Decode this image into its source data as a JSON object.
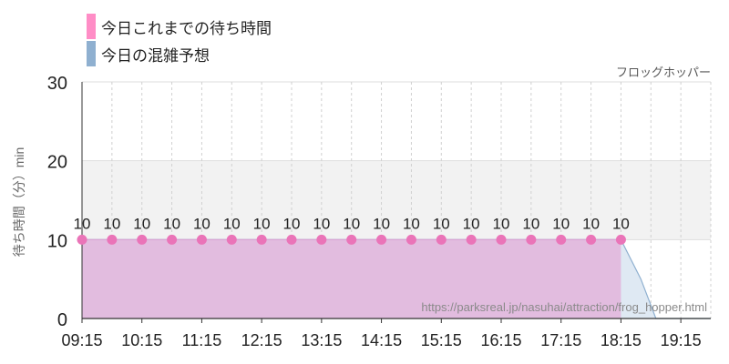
{
  "legend": [
    {
      "label": "今日これまでの待ち時間",
      "color": "#ff8dc6"
    },
    {
      "label": "今日の混雑予想",
      "color": "#8fb0d0"
    }
  ],
  "attraction_name": "フロッグホッパー",
  "source_url": "https://parksreal.jp/nasuhai/attraction/frog_hopper.html",
  "chart_data": {
    "type": "area",
    "ylabel": "待ち時間（分）min",
    "ylim": [
      0,
      30
    ],
    "yticks": [
      0,
      10,
      20,
      30
    ],
    "xticks": [
      "09:15",
      "10:15",
      "11:15",
      "12:15",
      "13:15",
      "14:15",
      "15:15",
      "16:15",
      "17:15",
      "18:15",
      "19:15"
    ],
    "xlim": [
      "09:15",
      "19:45"
    ],
    "shaded_band": [
      10,
      20
    ],
    "series": [
      {
        "name": "今日これまでの待ち時間",
        "type": "area_points",
        "color": "#e86fb0",
        "x": [
          "09:15",
          "09:45",
          "10:15",
          "10:45",
          "11:15",
          "11:45",
          "12:15",
          "12:45",
          "13:15",
          "13:45",
          "14:15",
          "14:45",
          "15:15",
          "15:45",
          "16:15",
          "16:45",
          "17:15",
          "17:45",
          "18:15"
        ],
        "values": [
          10,
          10,
          10,
          10,
          10,
          10,
          10,
          10,
          10,
          10,
          10,
          10,
          10,
          10,
          10,
          10,
          10,
          10,
          10
        ]
      },
      {
        "name": "今日の混雑予想",
        "type": "area",
        "color": "#8fb0d0",
        "x": [
          "09:15",
          "18:00",
          "18:15",
          "18:35",
          "18:50",
          "19:00",
          "19:15",
          "19:45"
        ],
        "values": [
          10,
          10,
          10,
          5,
          0,
          0,
          0,
          0
        ]
      }
    ]
  }
}
